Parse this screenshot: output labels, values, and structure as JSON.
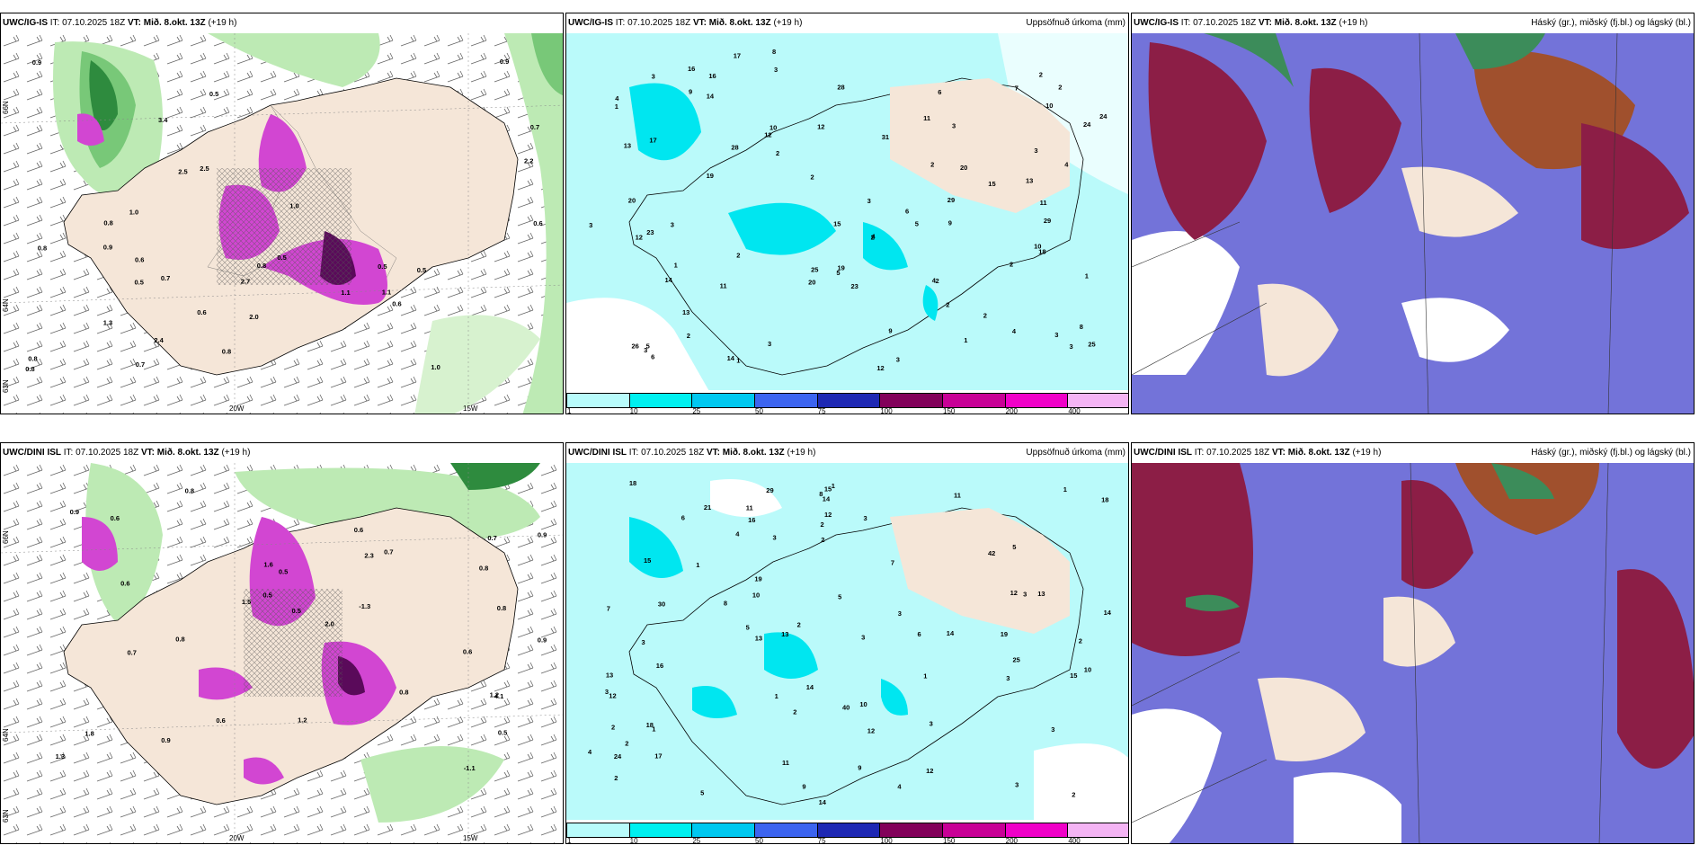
{
  "panels": {
    "p1": {
      "model": "UWC/IG-IS",
      "it_label": "IT:",
      "it": "07.10.2025 18Z",
      "vt_label": "VT:",
      "vt": "Mið. 8.okt. 13Z",
      "lead": "(+19 h)",
      "right": ""
    },
    "p2": {
      "model": "UWC/IG-IS",
      "it_label": "IT:",
      "it": "07.10.2025 18Z",
      "vt_label": "VT:",
      "vt": "Mið. 8.okt. 13Z",
      "lead": "(+19 h)",
      "right": "Uppsöfnuð úrkoma (mm)"
    },
    "p3": {
      "model": "UWC/IG-IS",
      "it_label": "IT:",
      "it": "07.10.2025 18Z",
      "vt_label": "VT:",
      "vt": "Mið. 8.okt. 13Z",
      "lead": "(+19 h)",
      "right": "Háský (gr.), miðský (fj.bl.) og lágský (bl.)"
    },
    "p4": {
      "model": "UWC/DINI ISL",
      "it_label": "IT:",
      "it": "07.10.2025 18Z",
      "vt_label": "VT:",
      "vt": "Mið. 8.okt. 13Z",
      "lead": "(+19 h)",
      "right": ""
    },
    "p5": {
      "model": "UWC/DINI ISL",
      "it_label": "IT:",
      "it": "07.10.2025 18Z",
      "vt_label": "VT:",
      "vt": "Mið. 8.okt. 13Z",
      "lead": "(+19 h)",
      "right": "Uppsöfnuð úrkoma (mm)"
    },
    "p6": {
      "model": "UWC/DINI ISL",
      "it_label": "IT:",
      "it": "07.10.2025 18Z",
      "vt_label": "VT:",
      "vt": "Mið. 8.okt. 13Z",
      "lead": "(+19 h)",
      "right": "Háský (gr.), miðský (fj.bl.) og lágský (bl.)"
    }
  },
  "grid_labels": {
    "lon_20w": "20W",
    "lon_15w": "15W",
    "lat_66n": "66N",
    "lat_64n": "64N",
    "lat_63n": "63N"
  },
  "legend": {
    "ticks": [
      "1",
      "10",
      "25",
      "50",
      "75",
      "100",
      "150",
      "200",
      "400"
    ],
    "colors": [
      "#b8fbfb",
      "#00f0f0",
      "#00c8f0",
      "#3c64f0",
      "#1e28b4",
      "#82005a",
      "#c80096",
      "#f000c8",
      "#f4b4f4"
    ]
  },
  "colors": {
    "land": "#f5e6d8",
    "sea_precip": "#bafafa",
    "green": "#78c878",
    "magenta": "#d246d2",
    "maroon": "#8c1e46",
    "blue": "#5a5ad2",
    "brown": "#a0502d"
  },
  "map_values": {
    "p1": [
      "0.6",
      "1.1",
      "0.6",
      "0.8",
      "1.0",
      "0.9",
      "0.8",
      "0.6",
      "0.9",
      "0.7",
      "1.1",
      "0.5",
      "0.7",
      "0.8",
      "0.5",
      "0.5",
      "1.0",
      "0.7",
      "0.9",
      "0.8",
      "2.5",
      "2.7",
      "1.3",
      "3.4",
      "2.5",
      "2.2",
      "2.0",
      "2.4",
      "1.0",
      "0.8",
      "0.5",
      "0.6",
      "0.5",
      "0.8"
    ],
    "p4": [
      "0.8",
      "0.6",
      "0.7",
      "0.9",
      "1.2",
      "0.6",
      "0.9",
      "0.6",
      "0.8",
      "-1.3",
      "-1.1",
      "1.8",
      "0.8",
      "0.5",
      "0.8",
      "0.9",
      "4.1",
      "2.0",
      "1.2",
      "1.5",
      "1.6",
      "0.5",
      "0.6",
      "0.7",
      "0.5",
      "0.9",
      "0.7",
      "1.3",
      "0.5",
      "0.8",
      "2.3",
      "0.6"
    ],
    "p2": [
      "9",
      "10",
      "6",
      "10",
      "3",
      "5",
      "2",
      "2",
      "2",
      "18",
      "29",
      "17",
      "28",
      "23",
      "12",
      "16",
      "11",
      "6",
      "13",
      "12",
      "8",
      "17",
      "14",
      "15",
      "20",
      "12",
      "3",
      "2",
      "3",
      "3",
      "10",
      "11",
      "15",
      "23",
      "24",
      "25",
      "19",
      "9",
      "11",
      "12",
      "20",
      "24",
      "25",
      "28",
      "19",
      "13",
      "16",
      "20",
      "14",
      "3",
      "5",
      "4",
      "3",
      "4",
      "4",
      "6",
      "7",
      "2",
      "1",
      "3",
      "2",
      "2",
      "14",
      "13",
      "8",
      "5",
      "26",
      "3",
      "3",
      "29",
      "31",
      "3",
      "4",
      "9",
      "1",
      "2",
      "4",
      "3",
      "3",
      "2",
      "1",
      "1",
      "2",
      "2",
      "2",
      "1"
    ],
    "p5": [
      "6",
      "3",
      "5",
      "16",
      "14",
      "15",
      "12",
      "10",
      "13",
      "12",
      "15",
      "12",
      "11",
      "18",
      "19",
      "4",
      "7",
      "13",
      "12",
      "9",
      "9",
      "5",
      "8",
      "3",
      "3",
      "1",
      "1",
      "4",
      "5",
      "1",
      "2",
      "3",
      "3",
      "5",
      "25",
      "17",
      "15",
      "30",
      "21",
      "19",
      "18",
      "14",
      "14",
      "18",
      "24",
      "16",
      "13",
      "14",
      "12",
      "13",
      "10",
      "14",
      "8",
      "3",
      "2",
      "3",
      "4",
      "3",
      "2",
      "2",
      "1",
      "1",
      "1",
      "2",
      "3",
      "3",
      "3",
      "40",
      "42",
      "29",
      "11",
      "10",
      "11",
      "7",
      "6",
      "2",
      "2",
      "2",
      "2"
    ]
  }
}
